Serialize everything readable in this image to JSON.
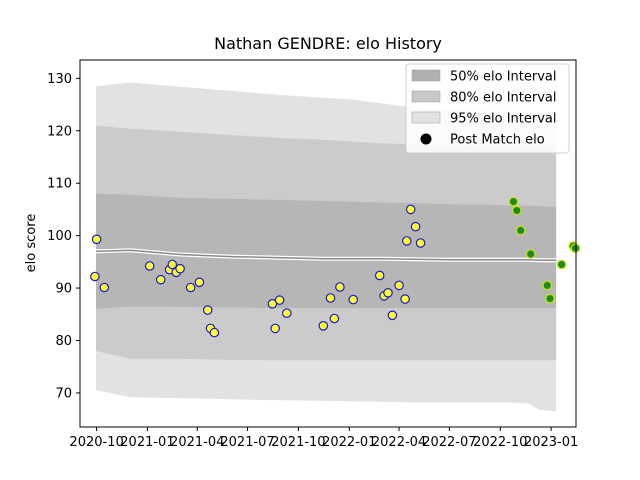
{
  "chart_data": {
    "type": "scatter",
    "title": "Nathan GENDRE: elo History",
    "xlabel": "",
    "ylabel": "elo score",
    "xlim": [
      "2020-09-01",
      "2023-02-15"
    ],
    "ylim": [
      63.5,
      133.5
    ],
    "yticks": [
      70,
      80,
      90,
      100,
      110,
      120,
      130
    ],
    "xticks": [
      "2020-10",
      "2021-01",
      "2021-04",
      "2021-07",
      "2021-10",
      "2022-01",
      "2022-04",
      "2022-07",
      "2022-10",
      "2023-01"
    ],
    "grid": false,
    "legend_position": "top-right",
    "legend": [
      {
        "label": "50% elo Interval",
        "color": "#b0b0b0"
      },
      {
        "label": "80% elo Interval",
        "color": "#c8c8c8"
      },
      {
        "label": "95% elo Interval",
        "color": "#e2e2e2"
      },
      {
        "label": "Post Match elo",
        "color": "#000000"
      }
    ],
    "bands": {
      "x": [
        "2020-09-30",
        "2020-12-01",
        "2021-03-01",
        "2021-06-01",
        "2021-09-01",
        "2021-11-15",
        "2022-01-01",
        "2022-03-01",
        "2022-05-01",
        "2022-07-01",
        "2022-09-01",
        "2022-10-15",
        "2022-11-20",
        "2022-12-10",
        "2023-01-10"
      ],
      "median": [
        97.0,
        97.2,
        96.4,
        96.0,
        95.8,
        95.6,
        95.6,
        95.6,
        95.5,
        95.4,
        95.4,
        95.4,
        95.4,
        95.3,
        95.3
      ],
      "q50_low": [
        86.0,
        86.5,
        86.4,
        86.3,
        86.2,
        86.2,
        86.2,
        86.2,
        86.2,
        86.2,
        86.2,
        86.2,
        86.2,
        86.2,
        86.2
      ],
      "q50_high": [
        108.0,
        107.8,
        107.2,
        107.0,
        106.8,
        106.6,
        106.5,
        106.3,
        106.2,
        106.0,
        105.9,
        105.8,
        105.7,
        105.6,
        105.5
      ],
      "q80_low": [
        78.0,
        76.5,
        76.5,
        76.3,
        76.2,
        76.2,
        76.2,
        76.2,
        76.2,
        76.2,
        76.2,
        76.2,
        76.2,
        76.2,
        76.2
      ],
      "q80_high": [
        121.0,
        120.4,
        119.8,
        119.2,
        118.6,
        118.3,
        118.0,
        117.6,
        117.4,
        117.2,
        117.0,
        117.0,
        117.0,
        117.0,
        117.0
      ],
      "q95_low": [
        70.5,
        69.2,
        69.0,
        68.8,
        68.6,
        68.5,
        68.4,
        68.3,
        68.2,
        68.2,
        68.2,
        68.2,
        68.0,
        66.8,
        66.5
      ],
      "q95_high": [
        128.5,
        129.2,
        128.4,
        127.6,
        126.8,
        126.3,
        126.0,
        125.2,
        124.4,
        124.0,
        123.8,
        123.6,
        123.5,
        123.5,
        123.5
      ]
    },
    "points_2021": [
      {
        "x": "2020-09-28",
        "y": 92.2
      },
      {
        "x": "2020-10-01",
        "y": 99.3
      },
      {
        "x": "2020-10-15",
        "y": 90.1
      },
      {
        "x": "2021-01-05",
        "y": 94.2
      },
      {
        "x": "2021-01-25",
        "y": 91.6
      },
      {
        "x": "2021-02-10",
        "y": 93.5
      },
      {
        "x": "2021-02-15",
        "y": 94.5
      },
      {
        "x": "2021-02-22",
        "y": 93.0
      },
      {
        "x": "2021-03-01",
        "y": 93.7
      },
      {
        "x": "2021-03-20",
        "y": 90.1
      },
      {
        "x": "2021-04-05",
        "y": 91.1
      },
      {
        "x": "2021-04-20",
        "y": 85.8
      },
      {
        "x": "2021-04-25",
        "y": 82.3
      },
      {
        "x": "2021-05-02",
        "y": 81.5
      },
      {
        "x": "2021-08-15",
        "y": 87.0
      },
      {
        "x": "2021-08-20",
        "y": 82.3
      },
      {
        "x": "2021-08-28",
        "y": 87.7
      },
      {
        "x": "2021-09-10",
        "y": 85.2
      },
      {
        "x": "2021-11-15",
        "y": 82.8
      },
      {
        "x": "2021-11-28",
        "y": 88.1
      },
      {
        "x": "2021-12-05",
        "y": 84.2
      },
      {
        "x": "2021-12-15",
        "y": 90.2
      },
      {
        "x": "2022-01-08",
        "y": 87.8
      }
    ],
    "points_2022": [
      {
        "x": "2022-02-25",
        "y": 92.4
      },
      {
        "x": "2022-03-05",
        "y": 88.5
      },
      {
        "x": "2022-03-12",
        "y": 89.1
      },
      {
        "x": "2022-03-20",
        "y": 84.8
      },
      {
        "x": "2022-04-01",
        "y": 90.5
      },
      {
        "x": "2022-04-12",
        "y": 87.9
      },
      {
        "x": "2022-04-15",
        "y": 99.0
      },
      {
        "x": "2022-04-22",
        "y": 105.0
      },
      {
        "x": "2022-05-01",
        "y": 101.7
      },
      {
        "x": "2022-05-10",
        "y": 98.6
      }
    ],
    "points_late": [
      {
        "x": "2022-10-25",
        "y": 106.5
      },
      {
        "x": "2022-10-31",
        "y": 104.8
      },
      {
        "x": "2022-11-07",
        "y": 101.0
      },
      {
        "x": "2022-11-25",
        "y": 96.5
      },
      {
        "x": "2022-12-25",
        "y": 90.5
      },
      {
        "x": "2022-12-30",
        "y": 88.0
      },
      {
        "x": "2023-01-20",
        "y": 94.5
      },
      {
        "x": "2023-02-10",
        "y": 98.0
      },
      {
        "x": "2023-02-14",
        "y": 97.6
      }
    ],
    "marker_colors": {
      "face_early": "#ffff33",
      "edge_early": "#1a1acc",
      "face_late": "#1f8a1f",
      "edge_late": "#c8e600"
    }
  }
}
